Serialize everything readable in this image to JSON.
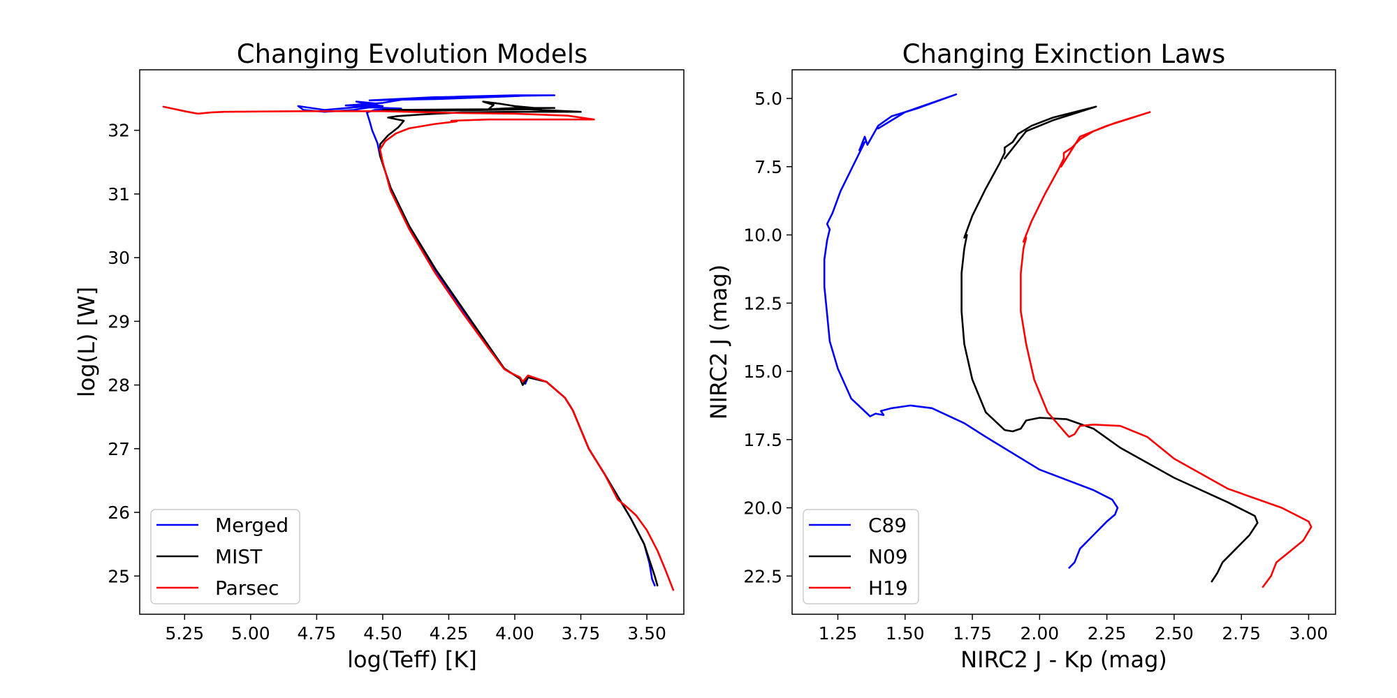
{
  "chart_data": [
    {
      "type": "line",
      "title": "Changing Evolution Models",
      "xlabel": "log(Teff) [K]",
      "ylabel": "log(L) [W]",
      "xlim": [
        5.42,
        3.36
      ],
      "ylim": [
        24.4,
        32.95
      ],
      "x_inverted": true,
      "xticks": [
        "5.25",
        "5.00",
        "4.75",
        "4.50",
        "4.25",
        "4.00",
        "3.75",
        "3.50"
      ],
      "yticks": [
        "25",
        "26",
        "27",
        "28",
        "29",
        "30",
        "31",
        "32"
      ],
      "grid": false,
      "legend": "lower left",
      "series": [
        {
          "name": "Merged",
          "color": "#0000ff",
          "points": [
            [
              3.47,
              24.85
            ],
            [
              3.48,
              24.95
            ],
            [
              3.49,
              25.2
            ],
            [
              3.51,
              25.5
            ],
            [
              3.56,
              25.9
            ],
            [
              3.61,
              26.25
            ],
            [
              3.66,
              26.6
            ],
            [
              3.72,
              27.0
            ],
            [
              3.78,
              27.6
            ],
            [
              3.81,
              27.8
            ],
            [
              3.88,
              28.05
            ],
            [
              3.95,
              28.12
            ],
            [
              3.96,
              28.02
            ],
            [
              3.98,
              28.1
            ],
            [
              4.01,
              28.18
            ],
            [
              4.04,
              28.25
            ],
            [
              4.1,
              28.6
            ],
            [
              4.2,
              29.2
            ],
            [
              4.3,
              29.8
            ],
            [
              4.4,
              30.5
            ],
            [
              4.47,
              31.1
            ],
            [
              4.51,
              31.6
            ],
            [
              4.52,
              31.8
            ],
            [
              4.54,
              32.0
            ],
            [
              4.55,
              32.15
            ],
            [
              4.56,
              32.28
            ],
            [
              4.53,
              32.32
            ],
            [
              4.47,
              32.33
            ],
            [
              4.43,
              32.34
            ],
            [
              4.55,
              32.36
            ],
            [
              4.61,
              32.32
            ],
            [
              4.72,
              32.29
            ],
            [
              4.8,
              32.32
            ],
            [
              4.82,
              32.38
            ],
            [
              4.72,
              32.32
            ],
            [
              4.55,
              32.38
            ],
            [
              4.52,
              32.42
            ],
            [
              4.6,
              32.45
            ],
            [
              4.55,
              32.41
            ],
            [
              4.5,
              32.38
            ],
            [
              4.64,
              32.39
            ],
            [
              4.5,
              32.43
            ],
            [
              4.4,
              32.5
            ],
            [
              4.2,
              32.53
            ],
            [
              4.0,
              32.55
            ],
            [
              3.85,
              32.55
            ],
            [
              4.15,
              32.53
            ],
            [
              4.3,
              32.52
            ],
            [
              4.55,
              32.47
            ],
            [
              4.45,
              32.48
            ],
            [
              4.3,
              32.49
            ],
            [
              4.1,
              32.52
            ],
            [
              3.98,
              32.54
            ]
          ]
        },
        {
          "name": "MIST",
          "color": "#000000",
          "points": [
            [
              3.46,
              24.85
            ],
            [
              3.47,
              25.0
            ],
            [
              3.49,
              25.25
            ],
            [
              3.51,
              25.5
            ],
            [
              3.56,
              25.9
            ],
            [
              3.61,
              26.25
            ],
            [
              3.66,
              26.6
            ],
            [
              3.72,
              27.0
            ],
            [
              3.78,
              27.6
            ],
            [
              3.81,
              27.8
            ],
            [
              3.88,
              28.05
            ],
            [
              3.95,
              28.12
            ],
            [
              3.97,
              28.0
            ],
            [
              3.98,
              28.1
            ],
            [
              4.01,
              28.18
            ],
            [
              4.04,
              28.26
            ],
            [
              4.1,
              28.62
            ],
            [
              4.2,
              29.22
            ],
            [
              4.3,
              29.82
            ],
            [
              4.4,
              30.5
            ],
            [
              4.47,
              31.1
            ],
            [
              4.51,
              31.6
            ],
            [
              4.51,
              31.78
            ],
            [
              4.48,
              31.92
            ],
            [
              4.44,
              32.05
            ],
            [
              4.42,
              32.15
            ],
            [
              4.48,
              32.2
            ],
            [
              4.45,
              32.22
            ],
            [
              4.35,
              32.25
            ],
            [
              4.2,
              32.28
            ],
            [
              4.0,
              32.29
            ],
            [
              3.75,
              32.29
            ],
            [
              3.95,
              32.33
            ],
            [
              4.1,
              32.32
            ],
            [
              4.3,
              32.31
            ],
            [
              4.5,
              32.32
            ],
            [
              4.1,
              32.33
            ],
            [
              4.08,
              32.4
            ],
            [
              4.12,
              32.45
            ],
            [
              4.06,
              32.42
            ],
            [
              4.0,
              32.38
            ],
            [
              3.9,
              32.34
            ],
            [
              4.0,
              32.35
            ],
            [
              4.1,
              32.33
            ],
            [
              3.95,
              32.35
            ],
            [
              3.85,
              32.35
            ]
          ]
        },
        {
          "name": "Parsec",
          "color": "#ff0000",
          "points": [
            [
              3.4,
              24.78
            ],
            [
              3.43,
              25.1
            ],
            [
              3.46,
              25.4
            ],
            [
              3.5,
              25.72
            ],
            [
              3.54,
              25.95
            ],
            [
              3.58,
              26.1
            ],
            [
              3.61,
              26.2
            ],
            [
              3.66,
              26.6
            ],
            [
              3.72,
              27.0
            ],
            [
              3.78,
              27.6
            ],
            [
              3.81,
              27.8
            ],
            [
              3.88,
              28.05
            ],
            [
              3.95,
              28.15
            ],
            [
              3.97,
              28.05
            ],
            [
              3.98,
              28.12
            ],
            [
              4.02,
              28.2
            ],
            [
              4.04,
              28.25
            ],
            [
              4.1,
              28.58
            ],
            [
              4.2,
              29.15
            ],
            [
              4.3,
              29.75
            ],
            [
              4.4,
              30.45
            ],
            [
              4.47,
              31.05
            ],
            [
              4.5,
              31.5
            ],
            [
              4.51,
              31.7
            ],
            [
              4.49,
              31.83
            ],
            [
              4.45,
              31.95
            ],
            [
              4.4,
              32.03
            ],
            [
              4.3,
              32.1
            ],
            [
              4.22,
              32.14
            ],
            [
              4.24,
              32.15
            ],
            [
              4.1,
              32.17
            ],
            [
              3.9,
              32.17
            ],
            [
              3.7,
              32.17
            ],
            [
              3.8,
              32.23
            ],
            [
              4.0,
              32.26
            ],
            [
              4.2,
              32.27
            ],
            [
              4.5,
              32.3
            ],
            [
              4.8,
              32.3
            ],
            [
              5.1,
              32.29
            ],
            [
              5.15,
              32.28
            ],
            [
              5.2,
              32.26
            ],
            [
              5.25,
              32.3
            ],
            [
              5.33,
              32.37
            ]
          ]
        }
      ]
    },
    {
      "type": "line",
      "title": "Changing Exinction Laws",
      "xlabel": "NIRC2 J - Kp (mag)",
      "ylabel": "NIRC2 J (mag)",
      "xlim": [
        1.08,
        3.1
      ],
      "ylim": [
        23.9,
        3.95
      ],
      "y_inverted": true,
      "xticks": [
        "1.25",
        "1.50",
        "1.75",
        "2.00",
        "2.25",
        "2.50",
        "2.75",
        "3.00"
      ],
      "yticks": [
        "5.0",
        "7.5",
        "10.0",
        "12.5",
        "15.0",
        "17.5",
        "20.0",
        "22.5"
      ],
      "grid": false,
      "legend": "lower left",
      "series": [
        {
          "name": "C89",
          "color": "#0000ff",
          "points": [
            [
              2.11,
              22.2
            ],
            [
              2.13,
              22.0
            ],
            [
              2.15,
              21.5
            ],
            [
              2.2,
              21.0
            ],
            [
              2.25,
              20.5
            ],
            [
              2.28,
              20.25
            ],
            [
              2.29,
              20.0
            ],
            [
              2.27,
              19.7
            ],
            [
              2.2,
              19.35
            ],
            [
              2.0,
              18.6
            ],
            [
              1.8,
              17.4
            ],
            [
              1.72,
              16.9
            ],
            [
              1.6,
              16.35
            ],
            [
              1.52,
              16.25
            ],
            [
              1.45,
              16.35
            ],
            [
              1.41,
              16.45
            ],
            [
              1.42,
              16.6
            ],
            [
              1.39,
              16.55
            ],
            [
              1.37,
              16.65
            ],
            [
              1.3,
              16.0
            ],
            [
              1.25,
              14.9
            ],
            [
              1.22,
              13.9
            ],
            [
              1.21,
              12.9
            ],
            [
              1.2,
              11.9
            ],
            [
              1.2,
              10.9
            ],
            [
              1.21,
              10.2
            ],
            [
              1.22,
              9.8
            ],
            [
              1.21,
              9.6
            ],
            [
              1.23,
              9.2
            ],
            [
              1.26,
              8.4
            ],
            [
              1.3,
              7.6
            ],
            [
              1.35,
              6.6
            ],
            [
              1.33,
              6.9
            ],
            [
              1.35,
              6.4
            ],
            [
              1.36,
              6.7
            ],
            [
              1.4,
              6.0
            ],
            [
              1.45,
              5.65
            ],
            [
              1.55,
              5.35
            ],
            [
              1.69,
              4.85
            ],
            [
              1.5,
              5.5
            ],
            [
              1.4,
              6.1
            ]
          ]
        },
        {
          "name": "N09",
          "color": "#000000",
          "points": [
            [
              2.64,
              22.7
            ],
            [
              2.66,
              22.4
            ],
            [
              2.68,
              22.0
            ],
            [
              2.73,
              21.5
            ],
            [
              2.78,
              21.0
            ],
            [
              2.81,
              20.55
            ],
            [
              2.8,
              20.3
            ],
            [
              2.7,
              19.8
            ],
            [
              2.5,
              18.9
            ],
            [
              2.3,
              17.8
            ],
            [
              2.2,
              17.1
            ],
            [
              2.1,
              16.75
            ],
            [
              2.0,
              16.7
            ],
            [
              1.95,
              16.8
            ],
            [
              1.93,
              17.1
            ],
            [
              1.9,
              17.2
            ],
            [
              1.87,
              17.15
            ],
            [
              1.8,
              16.5
            ],
            [
              1.75,
              15.3
            ],
            [
              1.72,
              14.0
            ],
            [
              1.71,
              12.8
            ],
            [
              1.71,
              11.4
            ],
            [
              1.72,
              10.5
            ],
            [
              1.73,
              10.0
            ],
            [
              1.72,
              10.1
            ],
            [
              1.75,
              9.3
            ],
            [
              1.8,
              8.3
            ],
            [
              1.85,
              7.4
            ],
            [
              1.87,
              7.0
            ],
            [
              1.87,
              6.8
            ],
            [
              1.9,
              6.6
            ],
            [
              1.92,
              6.3
            ],
            [
              1.97,
              6.0
            ],
            [
              2.05,
              5.7
            ],
            [
              2.21,
              5.3
            ],
            [
              2.05,
              5.8
            ],
            [
              1.95,
              6.2
            ],
            [
              1.87,
              7.2
            ]
          ]
        },
        {
          "name": "H19",
          "color": "#ff0000",
          "points": [
            [
              2.83,
              22.9
            ],
            [
              2.86,
              22.5
            ],
            [
              2.88,
              22.0
            ],
            [
              2.93,
              21.6
            ],
            [
              2.98,
              21.2
            ],
            [
              3.01,
              20.7
            ],
            [
              3.0,
              20.5
            ],
            [
              2.9,
              20.0
            ],
            [
              2.7,
              19.3
            ],
            [
              2.5,
              18.2
            ],
            [
              2.4,
              17.4
            ],
            [
              2.3,
              17.0
            ],
            [
              2.2,
              16.95
            ],
            [
              2.15,
              17.0
            ],
            [
              2.13,
              17.3
            ],
            [
              2.11,
              17.4
            ],
            [
              2.1,
              17.3
            ],
            [
              2.03,
              16.5
            ],
            [
              1.98,
              15.3
            ],
            [
              1.95,
              14.0
            ],
            [
              1.93,
              12.8
            ],
            [
              1.93,
              11.4
            ],
            [
              1.94,
              10.5
            ],
            [
              1.95,
              10.1
            ],
            [
              1.94,
              10.25
            ],
            [
              1.97,
              9.5
            ],
            [
              2.02,
              8.5
            ],
            [
              2.07,
              7.6
            ],
            [
              2.09,
              7.2
            ],
            [
              2.09,
              7.0
            ],
            [
              2.12,
              6.8
            ],
            [
              2.15,
              6.5
            ],
            [
              2.2,
              6.2
            ],
            [
              2.28,
              5.9
            ],
            [
              2.41,
              5.5
            ],
            [
              2.25,
              6.0
            ],
            [
              2.15,
              6.4
            ],
            [
              2.08,
              7.5
            ]
          ]
        }
      ]
    }
  ]
}
